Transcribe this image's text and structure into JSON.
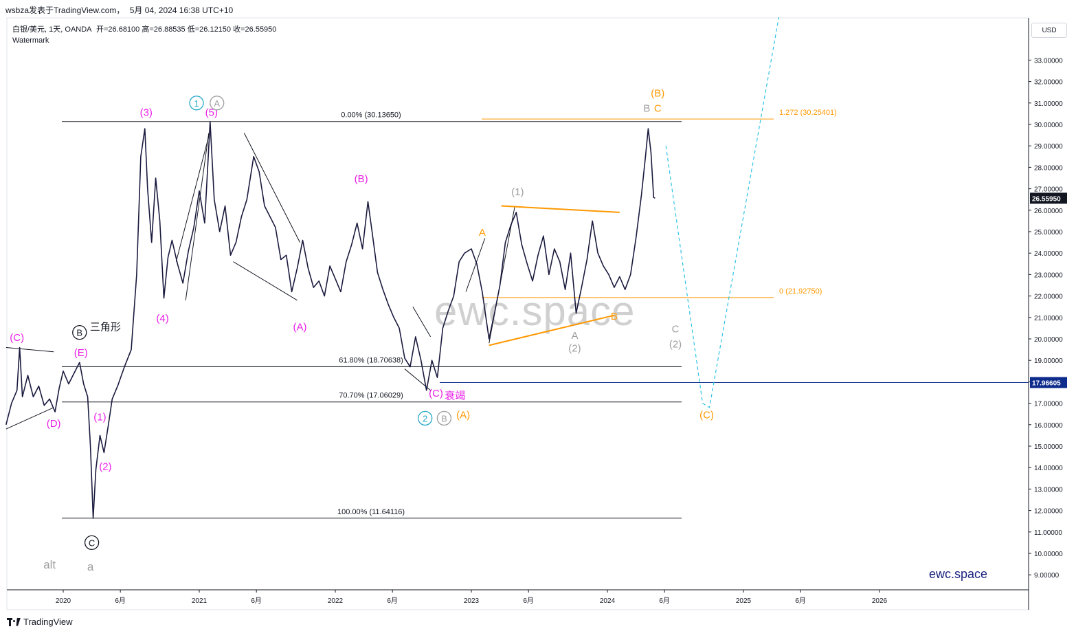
{
  "header": {
    "publisher": "wsbza发表于TradingView.com，",
    "timestamp": "5月 04, 2024 16:38 UTC+10"
  },
  "legend": {
    "symbol": "白银/美元, 1天, OANDA",
    "open_label": "开",
    "open": "=26.68100",
    "high_label": "高",
    "high": "=26.88535",
    "low_label": "低",
    "low": "=26.12150",
    "close_label": "收",
    "close": "=26.55950",
    "watermark_label": "Watermark"
  },
  "currency_button": "USD",
  "footer": {
    "brand": "TradingView"
  },
  "brand_watermark": "ewc.space",
  "center_watermark": "ewc.space",
  "chart_data": {
    "type": "line",
    "y_axis": {
      "min": 8.5,
      "max": 34,
      "ticks": [
        "33.00000",
        "32.00000",
        "31.00000",
        "30.00000",
        "29.00000",
        "28.00000",
        "27.00000",
        "26.00000",
        "25.00000",
        "24.00000",
        "23.00000",
        "22.00000",
        "21.00000",
        "20.00000",
        "19.00000",
        "18.00000",
        "17.00000",
        "16.00000",
        "15.00000",
        "14.00000",
        "13.00000",
        "12.00000",
        "11.00000",
        "10.00000",
        "9.00000"
      ],
      "tick_values": [
        33,
        32,
        31,
        30,
        29,
        28,
        27,
        26,
        25,
        24,
        23,
        22,
        21,
        20,
        19,
        18,
        17,
        16,
        15,
        14,
        13,
        12,
        11,
        10,
        9
      ]
    },
    "x_axis": {
      "ticks": [
        {
          "label": "2020",
          "t": 2020.0
        },
        {
          "label": "6月",
          "t": 2020.42
        },
        {
          "label": "2021",
          "t": 2021.0
        },
        {
          "label": "6月",
          "t": 2021.42
        },
        {
          "label": "2022",
          "t": 2022.0
        },
        {
          "label": "6月",
          "t": 2022.42
        },
        {
          "label": "2023",
          "t": 2023.0
        },
        {
          "label": "6月",
          "t": 2023.42
        },
        {
          "label": "2024",
          "t": 2024.0
        },
        {
          "label": "6月",
          "t": 2024.42
        },
        {
          "label": "2025",
          "t": 2025.0
        },
        {
          "label": "6月",
          "t": 2025.42
        },
        {
          "label": "2026",
          "t": 2026.0
        }
      ]
    },
    "price_path": [
      [
        2019.58,
        16.0
      ],
      [
        2019.62,
        17.0
      ],
      [
        2019.66,
        17.6
      ],
      [
        2019.68,
        19.6
      ],
      [
        2019.7,
        17.3
      ],
      [
        2019.74,
        18.3
      ],
      [
        2019.78,
        17.3
      ],
      [
        2019.82,
        17.8
      ],
      [
        2019.86,
        16.9
      ],
      [
        2019.9,
        17.2
      ],
      [
        2019.94,
        16.6
      ],
      [
        2019.97,
        17.7
      ],
      [
        2020.0,
        18.5
      ],
      [
        2020.04,
        17.9
      ],
      [
        2020.08,
        18.4
      ],
      [
        2020.12,
        18.9
      ],
      [
        2020.15,
        17.9
      ],
      [
        2020.18,
        17.3
      ],
      [
        2020.2,
        15.0
      ],
      [
        2020.22,
        11.64
      ],
      [
        2020.24,
        13.9
      ],
      [
        2020.27,
        15.5
      ],
      [
        2020.3,
        14.7
      ],
      [
        2020.33,
        15.9
      ],
      [
        2020.36,
        17.2
      ],
      [
        2020.4,
        17.8
      ],
      [
        2020.45,
        18.7
      ],
      [
        2020.5,
        19.5
      ],
      [
        2020.54,
        23.0
      ],
      [
        2020.57,
        28.5
      ],
      [
        2020.6,
        29.8
      ],
      [
        2020.62,
        27.0
      ],
      [
        2020.65,
        24.5
      ],
      [
        2020.68,
        27.5
      ],
      [
        2020.71,
        25.5
      ],
      [
        2020.74,
        21.9
      ],
      [
        2020.77,
        23.8
      ],
      [
        2020.8,
        24.6
      ],
      [
        2020.84,
        23.5
      ],
      [
        2020.88,
        22.6
      ],
      [
        2020.92,
        24.1
      ],
      [
        2020.96,
        25.2
      ],
      [
        2021.0,
        26.9
      ],
      [
        2021.04,
        25.4
      ],
      [
        2021.08,
        30.13
      ],
      [
        2021.11,
        26.5
      ],
      [
        2021.15,
        25.0
      ],
      [
        2021.19,
        26.2
      ],
      [
        2021.23,
        23.9
      ],
      [
        2021.27,
        24.5
      ],
      [
        2021.31,
        25.7
      ],
      [
        2021.35,
        26.5
      ],
      [
        2021.4,
        28.5
      ],
      [
        2021.44,
        27.8
      ],
      [
        2021.48,
        26.2
      ],
      [
        2021.52,
        25.7
      ],
      [
        2021.56,
        25.2
      ],
      [
        2021.6,
        23.7
      ],
      [
        2021.64,
        23.9
      ],
      [
        2021.68,
        22.2
      ],
      [
        2021.72,
        23.3
      ],
      [
        2021.76,
        24.6
      ],
      [
        2021.8,
        23.3
      ],
      [
        2021.84,
        22.4
      ],
      [
        2021.88,
        22.7
      ],
      [
        2021.92,
        22.0
      ],
      [
        2021.96,
        23.4
      ],
      [
        2022.0,
        22.8
      ],
      [
        2022.04,
        22.2
      ],
      [
        2022.08,
        23.6
      ],
      [
        2022.12,
        24.4
      ],
      [
        2022.16,
        25.4
      ],
      [
        2022.2,
        24.2
      ],
      [
        2022.24,
        26.4
      ],
      [
        2022.27,
        25.0
      ],
      [
        2022.31,
        23.1
      ],
      [
        2022.35,
        22.3
      ],
      [
        2022.39,
        21.6
      ],
      [
        2022.43,
        21.0
      ],
      [
        2022.47,
        20.5
      ],
      [
        2022.51,
        19.1
      ],
      [
        2022.55,
        18.7
      ],
      [
        2022.59,
        20.1
      ],
      [
        2022.63,
        19.0
      ],
      [
        2022.67,
        17.6
      ],
      [
        2022.71,
        19.0
      ],
      [
        2022.75,
        18.2
      ],
      [
        2022.79,
        20.5
      ],
      [
        2022.83,
        21.3
      ],
      [
        2022.87,
        22.0
      ],
      [
        2022.91,
        23.6
      ],
      [
        2022.95,
        24.0
      ],
      [
        2023.0,
        24.2
      ],
      [
        2023.04,
        23.5
      ],
      [
        2023.08,
        22.2
      ],
      [
        2023.13,
        20.0
      ],
      [
        2023.17,
        21.2
      ],
      [
        2023.21,
        22.5
      ],
      [
        2023.25,
        24.5
      ],
      [
        2023.29,
        25.3
      ],
      [
        2023.33,
        25.9
      ],
      [
        2023.37,
        24.4
      ],
      [
        2023.41,
        23.5
      ],
      [
        2023.45,
        22.7
      ],
      [
        2023.49,
        23.9
      ],
      [
        2023.53,
        24.8
      ],
      [
        2023.57,
        23.0
      ],
      [
        2023.61,
        24.2
      ],
      [
        2023.65,
        23.6
      ],
      [
        2023.69,
        22.3
      ],
      [
        2023.73,
        24.0
      ],
      [
        2023.77,
        21.2
      ],
      [
        2023.81,
        22.4
      ],
      [
        2023.85,
        23.7
      ],
      [
        2023.89,
        25.5
      ],
      [
        2023.93,
        24.0
      ],
      [
        2023.97,
        23.4
      ],
      [
        2024.01,
        23.0
      ],
      [
        2024.05,
        22.4
      ],
      [
        2024.09,
        22.9
      ],
      [
        2024.13,
        22.3
      ],
      [
        2024.17,
        23.0
      ],
      [
        2024.21,
        24.7
      ],
      [
        2024.25,
        26.7
      ],
      [
        2024.28,
        28.5
      ],
      [
        2024.3,
        29.8
      ],
      [
        2024.32,
        28.7
      ],
      [
        2024.34,
        26.6
      ],
      [
        2024.35,
        26.56
      ]
    ],
    "horizontal_levels": [
      {
        "label": "0.00% (30.13650)",
        "value": 30.1365
      },
      {
        "label": "61.80% (18.70638)",
        "value": 18.70638
      },
      {
        "label": "70.70% (17.06029)",
        "value": 17.06029
      },
      {
        "label": "100.00% (11.64116)",
        "value": 11.64116
      },
      {
        "label": "1.272 (30.25401)",
        "value": 30.25401
      },
      {
        "label": "0 (21.92750)",
        "value": 21.9275
      }
    ],
    "price_badges": [
      {
        "label": "26.55950",
        "value": 26.5595,
        "color": "#131722"
      },
      {
        "label": "17.96605",
        "value": 17.96605,
        "color": "#0d2c8c"
      }
    ],
    "wave_labels": [
      {
        "text": "(C)",
        "t": 2019.66,
        "v": 19.9,
        "color": "#e91ee6"
      },
      {
        "text": "(D)",
        "t": 2019.93,
        "v": 15.9,
        "color": "#e91ee6"
      },
      {
        "text": "(E)",
        "t": 2020.13,
        "v": 19.2,
        "color": "#e91ee6"
      },
      {
        "text": "三角形",
        "t": 2020.31,
        "v": 20.4,
        "color": "#131722"
      },
      {
        "text": "(1)",
        "t": 2020.27,
        "v": 16.2,
        "color": "#e91ee6"
      },
      {
        "text": "(2)",
        "t": 2020.31,
        "v": 13.9,
        "color": "#e91ee6"
      },
      {
        "text": "(3)",
        "t": 2020.61,
        "v": 30.4,
        "color": "#e91ee6"
      },
      {
        "text": "(4)",
        "t": 2020.73,
        "v": 20.8,
        "color": "#e91ee6"
      },
      {
        "text": "(5)",
        "t": 2021.09,
        "v": 30.4,
        "color": "#e91ee6"
      },
      {
        "text": "(A)",
        "t": 2021.74,
        "v": 20.4,
        "color": "#e91ee6"
      },
      {
        "text": "(B)",
        "t": 2022.19,
        "v": 27.3,
        "color": "#e91ee6"
      },
      {
        "text": "(C)",
        "t": 2022.74,
        "v": 17.3,
        "color": "#e91ee6"
      },
      {
        "text": "衰竭",
        "t": 2022.88,
        "v": 17.2,
        "color": "#e91ee6"
      },
      {
        "text": "(A)",
        "t": 2022.94,
        "v": 16.3,
        "color": "#ff9800"
      },
      {
        "text": "A",
        "t": 2023.08,
        "v": 24.8,
        "color": "#ff9800"
      },
      {
        "text": "(1)",
        "t": 2023.34,
        "v": 26.7,
        "color": "#9e9e9e"
      },
      {
        "text": "A",
        "t": 2023.76,
        "v": 20.0,
        "color": "#9e9e9e"
      },
      {
        "text": "(2)",
        "t": 2023.76,
        "v": 19.4,
        "color": "#9e9e9e"
      },
      {
        "text": "B",
        "t": 2024.05,
        "v": 20.9,
        "color": "#ff9800"
      },
      {
        "text": "B",
        "t": 2024.29,
        "v": 30.6,
        "color": "#9e9e9e"
      },
      {
        "text": "C",
        "t": 2024.37,
        "v": 30.6,
        "color": "#ff9800"
      },
      {
        "text": "(B)",
        "t": 2024.37,
        "v": 31.3,
        "color": "#ff9800"
      },
      {
        "text": "C",
        "t": 2024.5,
        "v": 20.3,
        "color": "#9e9e9e"
      },
      {
        "text": "(2)",
        "t": 2024.5,
        "v": 19.6,
        "color": "#9e9e9e"
      },
      {
        "text": "(C)",
        "t": 2024.73,
        "v": 16.3,
        "color": "#ff9800"
      },
      {
        "text": "alt",
        "t": 2019.9,
        "v": 9.3,
        "color": "#9e9e9e"
      },
      {
        "text": "a",
        "t": 2020.2,
        "v": 9.2,
        "color": "#9e9e9e"
      }
    ],
    "circle_labels": [
      {
        "text": "B",
        "t": 2020.12,
        "v": 20.3,
        "color": "#131722"
      },
      {
        "text": "C",
        "t": 2020.21,
        "v": 10.5,
        "color": "#131722"
      },
      {
        "text": "1",
        "t": 2020.98,
        "v": 31.0,
        "color": "#26a9c9"
      },
      {
        "text": "A",
        "t": 2021.13,
        "v": 31.0,
        "color": "#9e9e9e"
      },
      {
        "text": "2",
        "t": 2022.66,
        "v": 16.3,
        "color": "#26a9c9"
      },
      {
        "text": "B",
        "t": 2022.8,
        "v": 16.3,
        "color": "#9e9e9e"
      }
    ]
  }
}
